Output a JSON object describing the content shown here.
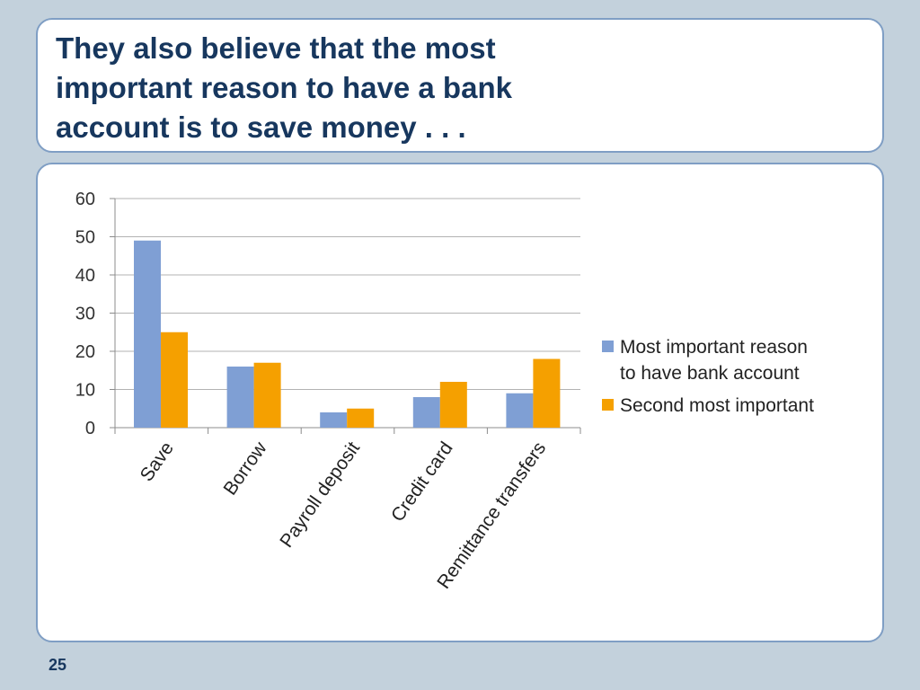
{
  "slide": {
    "title_lines": [
      "They also believe that the most",
      "important reason to have a bank",
      "account is to save money . . ."
    ],
    "page_number": "25"
  },
  "chart_data": {
    "type": "bar",
    "categories": [
      "Save",
      "Borrow",
      "Payroll deposit",
      "Credit card",
      "Remittance transfers"
    ],
    "series": [
      {
        "name": "Most important reason to have bank account",
        "legend_lines": [
          "Most important reason",
          "to have bank account"
        ],
        "values": [
          49,
          16,
          4,
          8,
          9
        ],
        "color": "#7f9fd4"
      },
      {
        "name": "Second most important",
        "legend_lines": [
          "Second most important"
        ],
        "values": [
          25,
          17,
          5,
          12,
          18
        ],
        "color": "#f5a000"
      }
    ],
    "title": "",
    "xlabel": "",
    "ylabel": "",
    "ylim": [
      0,
      60
    ],
    "yticks": [
      "0",
      "10",
      "20",
      "30",
      "40",
      "50",
      "60"
    ],
    "grid": true,
    "legend_position": "right"
  }
}
